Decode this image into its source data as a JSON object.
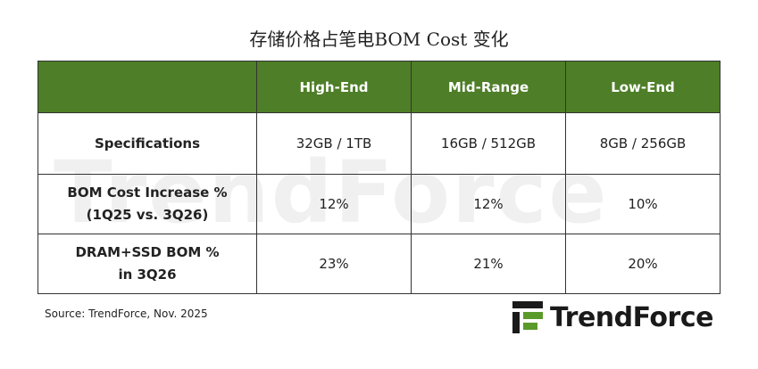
{
  "title": "存储价格占笔电BOM Cost 变化",
  "table": {
    "columns": [
      "High-End",
      "Mid-Range",
      "Low-End"
    ],
    "rows": [
      {
        "label": [
          "Specifications"
        ],
        "cells": [
          "32GB / 1TB",
          "16GB / 512GB",
          "8GB / 256GB"
        ]
      },
      {
        "label": [
          "BOM Cost Increase %",
          "(1Q25 vs. 3Q26)"
        ],
        "cells": [
          "12%",
          "12%",
          "10%"
        ]
      },
      {
        "label": [
          "DRAM+SSD BOM %",
          "in 3Q26"
        ],
        "cells": [
          "23%",
          "21%",
          "20%"
        ]
      }
    ]
  },
  "source": "Source: TrendForce, Nov. 2025",
  "watermark": "TrendForce",
  "logo": "TrendForce"
}
